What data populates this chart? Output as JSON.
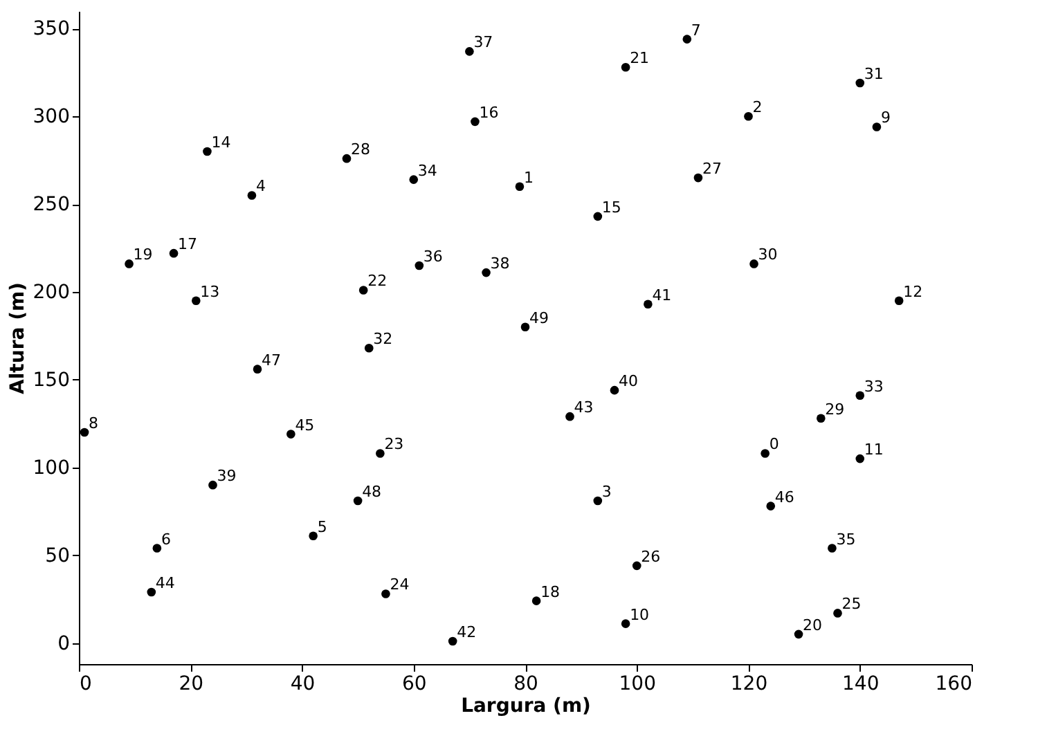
{
  "chart_data": {
    "type": "scatter",
    "xlabel": "Largura (m)",
    "ylabel": "Altura (m)",
    "x": [
      123,
      79,
      120,
      93,
      31,
      42,
      14,
      109,
      1,
      143,
      98,
      140,
      147,
      21,
      23,
      93,
      71,
      17,
      82,
      9,
      129,
      98,
      51,
      54,
      55,
      136,
      100,
      111,
      48,
      133,
      121,
      140,
      52,
      140,
      60,
      135,
      61,
      70,
      73,
      24,
      96,
      102,
      67,
      88,
      13,
      38,
      124,
      32,
      50,
      80
    ],
    "series": [
      {
        "color": "#000000",
        "values": [
          108,
          260,
          300,
          81,
          255,
          61,
          54,
          344,
          120,
          294,
          11,
          105,
          195,
          195,
          280,
          243,
          297,
          222,
          24,
          216,
          5,
          328,
          201,
          108,
          28,
          17,
          44,
          265,
          276,
          128,
          216,
          319,
          168,
          141,
          264,
          54,
          215,
          337,
          211,
          90,
          144,
          193,
          1,
          129,
          29,
          119,
          78,
          156,
          81,
          180
        ]
      }
    ],
    "marker": "circle",
    "grid": false,
    "xlim": [
      0,
      160
    ],
    "xticks": [
      0,
      20,
      40,
      60,
      80,
      100,
      120,
      140,
      160
    ],
    "ylim": [
      -12,
      360
    ],
    "yticks": [
      0,
      50,
      100,
      150,
      200,
      250,
      300,
      350
    ],
    "annotations": [
      {
        "text": "0",
        "x": 123,
        "y": 108
      },
      {
        "text": "1",
        "x": 79,
        "y": 260
      },
      {
        "text": "2",
        "x": 120,
        "y": 300
      },
      {
        "text": "3",
        "x": 93,
        "y": 81
      },
      {
        "text": "4",
        "x": 31,
        "y": 255
      },
      {
        "text": "5",
        "x": 42,
        "y": 61
      },
      {
        "text": "6",
        "x": 14,
        "y": 54
      },
      {
        "text": "7",
        "x": 109,
        "y": 344
      },
      {
        "text": "8",
        "x": 1,
        "y": 120
      },
      {
        "text": "9",
        "x": 143,
        "y": 294
      },
      {
        "text": "10",
        "x": 98,
        "y": 11
      },
      {
        "text": "11",
        "x": 140,
        "y": 105
      },
      {
        "text": "12",
        "x": 147,
        "y": 195
      },
      {
        "text": "13",
        "x": 21,
        "y": 195
      },
      {
        "text": "14",
        "x": 23,
        "y": 280
      },
      {
        "text": "15",
        "x": 93,
        "y": 243
      },
      {
        "text": "16",
        "x": 71,
        "y": 297
      },
      {
        "text": "17",
        "x": 17,
        "y": 222
      },
      {
        "text": "18",
        "x": 82,
        "y": 24
      },
      {
        "text": "19",
        "x": 9,
        "y": 216
      },
      {
        "text": "20",
        "x": 129,
        "y": 5
      },
      {
        "text": "21",
        "x": 98,
        "y": 328
      },
      {
        "text": "22",
        "x": 51,
        "y": 201
      },
      {
        "text": "23",
        "x": 54,
        "y": 108
      },
      {
        "text": "24",
        "x": 55,
        "y": 28
      },
      {
        "text": "25",
        "x": 136,
        "y": 17
      },
      {
        "text": "26",
        "x": 100,
        "y": 44
      },
      {
        "text": "27",
        "x": 111,
        "y": 265
      },
      {
        "text": "28",
        "x": 48,
        "y": 276
      },
      {
        "text": "29",
        "x": 133,
        "y": 128
      },
      {
        "text": "30",
        "x": 121,
        "y": 216
      },
      {
        "text": "31",
        "x": 140,
        "y": 319
      },
      {
        "text": "32",
        "x": 52,
        "y": 168
      },
      {
        "text": "33",
        "x": 140,
        "y": 141
      },
      {
        "text": "34",
        "x": 60,
        "y": 264
      },
      {
        "text": "35",
        "x": 135,
        "y": 54
      },
      {
        "text": "36",
        "x": 61,
        "y": 215
      },
      {
        "text": "37",
        "x": 70,
        "y": 337
      },
      {
        "text": "38",
        "x": 73,
        "y": 211
      },
      {
        "text": "39",
        "x": 24,
        "y": 90
      },
      {
        "text": "40",
        "x": 96,
        "y": 144
      },
      {
        "text": "41",
        "x": 102,
        "y": 193
      },
      {
        "text": "42",
        "x": 67,
        "y": 1
      },
      {
        "text": "43",
        "x": 88,
        "y": 129
      },
      {
        "text": "44",
        "x": 13,
        "y": 29
      },
      {
        "text": "45",
        "x": 38,
        "y": 119
      },
      {
        "text": "46",
        "x": 124,
        "y": 78
      },
      {
        "text": "47",
        "x": 32,
        "y": 156
      },
      {
        "text": "48",
        "x": 50,
        "y": 81
      },
      {
        "text": "49",
        "x": 80,
        "y": 180
      }
    ]
  }
}
